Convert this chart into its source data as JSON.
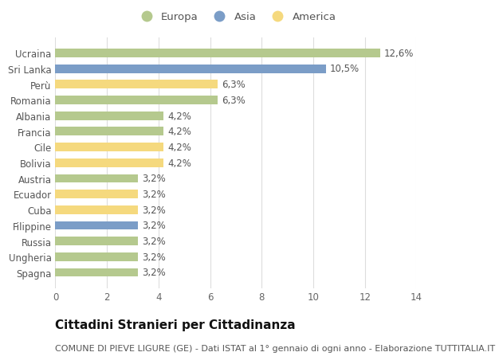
{
  "categories": [
    "Ucraina",
    "Sri Lanka",
    "Perù",
    "Romania",
    "Albania",
    "Francia",
    "Cile",
    "Bolivia",
    "Austria",
    "Ecuador",
    "Cuba",
    "Filippine",
    "Russia",
    "Ungheria",
    "Spagna"
  ],
  "values": [
    12.6,
    10.5,
    6.3,
    6.3,
    4.2,
    4.2,
    4.2,
    4.2,
    3.2,
    3.2,
    3.2,
    3.2,
    3.2,
    3.2,
    3.2
  ],
  "labels": [
    "12,6%",
    "10,5%",
    "6,3%",
    "6,3%",
    "4,2%",
    "4,2%",
    "4,2%",
    "4,2%",
    "3,2%",
    "3,2%",
    "3,2%",
    "3,2%",
    "3,2%",
    "3,2%",
    "3,2%"
  ],
  "continents": [
    "Europa",
    "Asia",
    "America",
    "Europa",
    "Europa",
    "Europa",
    "America",
    "America",
    "Europa",
    "America",
    "America",
    "Asia",
    "Europa",
    "Europa",
    "Europa"
  ],
  "colors": {
    "Europa": "#b5c98e",
    "Asia": "#7b9dc7",
    "America": "#f5d97e"
  },
  "legend": [
    "Europa",
    "Asia",
    "America"
  ],
  "xlim": [
    0,
    14
  ],
  "xticks": [
    0,
    2,
    4,
    6,
    8,
    10,
    12,
    14
  ],
  "title": "Cittadini Stranieri per Cittadinanza",
  "subtitle": "COMUNE DI PIEVE LIGURE (GE) - Dati ISTAT al 1° gennaio di ogni anno - Elaborazione TUTTITALIA.IT",
  "bg_color": "#ffffff",
  "grid_color": "#dddddd",
  "bar_height": 0.55,
  "title_fontsize": 11,
  "subtitle_fontsize": 8,
  "label_fontsize": 8.5,
  "tick_fontsize": 8.5,
  "legend_fontsize": 9.5
}
